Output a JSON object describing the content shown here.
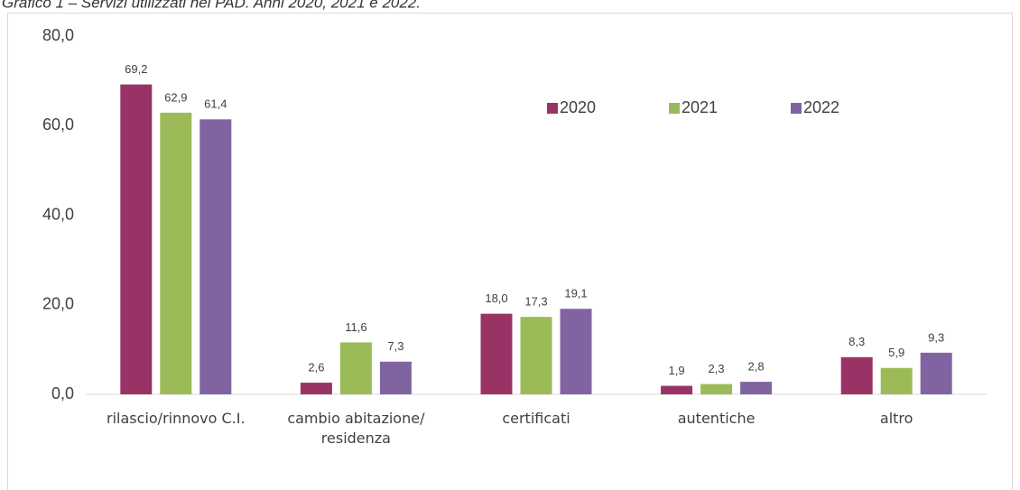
{
  "chart_data": {
    "type": "bar",
    "title": "Grafico 1 – Servizi utilizzati nei PAD. Anni 2020, 2021 e 2022.",
    "categories": [
      "rilascio/rinnovo C.I.",
      "cambio abitazione/\nresidenza",
      "certificati",
      "autentiche",
      "altro"
    ],
    "series": [
      {
        "name": "2020",
        "color": "#993366",
        "values": [
          69.2,
          2.6,
          18.0,
          1.9,
          8.3
        ],
        "value_labels": [
          "69,2",
          "2,6",
          "18,0",
          "1,9",
          "8,3"
        ]
      },
      {
        "name": "2021",
        "color": "#9bbb59",
        "values": [
          62.9,
          11.6,
          17.3,
          2.3,
          5.9
        ],
        "value_labels": [
          "62,9",
          "11,6",
          "17,3",
          "2,3",
          "5,9"
        ]
      },
      {
        "name": "2022",
        "color": "#8064a2",
        "values": [
          61.4,
          7.3,
          19.1,
          2.8,
          9.3
        ],
        "value_labels": [
          "61,4",
          "7,3",
          "19,1",
          "2,8",
          "9,3"
        ]
      }
    ],
    "ylim": [
      0,
      80
    ],
    "yticks": [
      {
        "value": 0,
        "label": "0,0"
      },
      {
        "value": 20,
        "label": "20,0"
      },
      {
        "value": 40,
        "label": "40,0"
      },
      {
        "value": 60,
        "label": "60,0"
      },
      {
        "value": 80,
        "label": "80,0"
      }
    ],
    "grid": false,
    "legend": "top-right"
  }
}
